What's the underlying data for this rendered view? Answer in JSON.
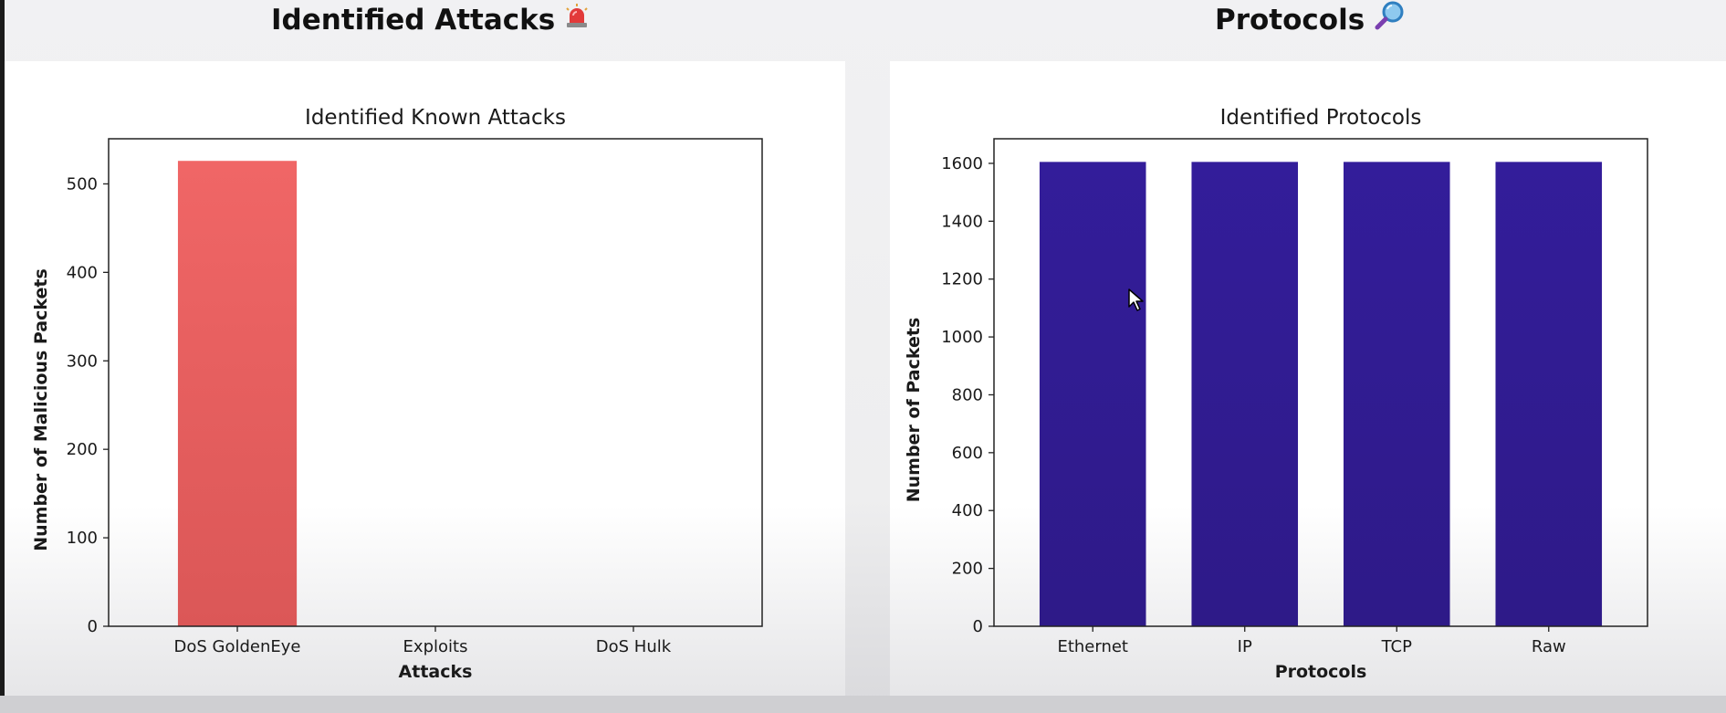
{
  "sections": [
    {
      "title": "Identified Attacks",
      "icon": "rotating-light-icon"
    },
    {
      "title": "Protocols",
      "icon": "magnifying-glass-icon"
    }
  ],
  "chart_data": [
    {
      "type": "bar",
      "title": "Identified Known Attacks",
      "xlabel": "Attacks",
      "ylabel": "Number of Malicious Packets",
      "categories": [
        "DoS GoldenEye",
        "Exploits",
        "DoS Hulk"
      ],
      "values": [
        526,
        0,
        0
      ],
      "ylim": [
        0,
        551
      ],
      "yticks": [
        0,
        100,
        200,
        300,
        400,
        500
      ],
      "color": "#ef6464",
      "grid": false,
      "legend": false
    },
    {
      "type": "bar",
      "title": "Identified Protocols",
      "xlabel": "Protocols",
      "ylabel": "Number of Packets",
      "categories": [
        "Ethernet",
        "IP",
        "TCP",
        "Raw"
      ],
      "values": [
        1605,
        1605,
        1605,
        1605
      ],
      "ylim": [
        0,
        1685
      ],
      "yticks": [
        0,
        200,
        400,
        600,
        800,
        1000,
        1200,
        1400,
        1600
      ],
      "color": "#321d96",
      "grid": false,
      "legend": false
    }
  ]
}
